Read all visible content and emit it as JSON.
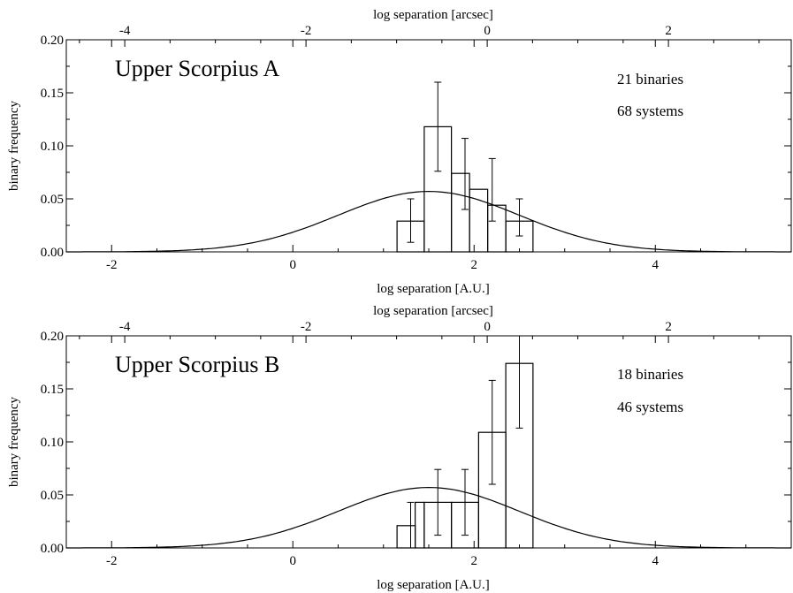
{
  "chart_data": [
    {
      "type": "bar",
      "title": "Upper Scorpius A",
      "annotations": [
        "21 binaries",
        "68 systems"
      ],
      "xlabel": "log separation [A.U.]",
      "x2label": "log separation [arcsec]",
      "ylabel": "binary frequency",
      "xlim": [
        -2.5,
        5.5
      ],
      "x2lim": [
        -4.645,
        3.355
      ],
      "ylim": [
        0,
        0.2
      ],
      "xticks": [
        -2,
        0,
        2,
        4
      ],
      "x2ticks": [
        -4,
        -2,
        0,
        2
      ],
      "yticks": [
        0.0,
        0.05,
        0.1,
        0.15,
        0.2
      ],
      "ytick_labels": [
        "0.00",
        "0.05",
        "0.10",
        "0.15",
        "0.20"
      ],
      "xtick_labels": [
        "-2",
        "0",
        "2",
        "4"
      ],
      "x2tick_labels": [
        "-4",
        "-2",
        "0",
        "2"
      ],
      "bin_edges": [
        1.15,
        1.45,
        1.75,
        1.95,
        2.15,
        2.35,
        2.65
      ],
      "values": [
        0.029,
        0.118,
        0.074,
        0.059,
        0.044,
        0.029
      ],
      "errors": {
        "x": [
          1.3,
          1.6,
          1.9,
          2.2,
          2.5
        ],
        "low": [
          0.009,
          0.076,
          0.04,
          0.029,
          0.015
        ],
        "high": [
          0.05,
          0.16,
          0.107,
          0.088,
          0.05
        ]
      },
      "curve": {
        "type": "gaussian",
        "mean": 1.5,
        "sigma": 1.0,
        "peak": 0.057
      },
      "grid": false
    },
    {
      "type": "bar",
      "title": "Upper Scorpius B",
      "annotations": [
        "18 binaries",
        "46 systems"
      ],
      "xlabel": "log separation [A.U.]",
      "x2label": "log separation [arcsec]",
      "ylabel": "binary frequency",
      "xlim": [
        -2.5,
        5.5
      ],
      "x2lim": [
        -4.645,
        3.355
      ],
      "ylim": [
        0,
        0.2
      ],
      "xticks": [
        -2,
        0,
        2,
        4
      ],
      "x2ticks": [
        -4,
        -2,
        0,
        2
      ],
      "yticks": [
        0.0,
        0.05,
        0.1,
        0.15,
        0.2
      ],
      "ytick_labels": [
        "0.00",
        "0.05",
        "0.10",
        "0.15",
        "0.20"
      ],
      "xtick_labels": [
        "-2",
        "0",
        "2",
        "4"
      ],
      "x2tick_labels": [
        "-4",
        "-2",
        "0",
        "2"
      ],
      "bin_edges": [
        1.15,
        1.35,
        1.45,
        1.75,
        2.05,
        2.35,
        2.65
      ],
      "values": [
        0.021,
        0.043,
        0.043,
        0.043,
        0.109,
        0.174
      ],
      "errors": {
        "x": [
          1.3,
          1.6,
          1.9,
          2.2,
          2.5
        ],
        "low": [
          0.0,
          0.012,
          0.012,
          0.06,
          0.113
        ],
        "high": [
          0.043,
          0.074,
          0.074,
          0.158,
          0.205
        ]
      },
      "curve": {
        "type": "gaussian",
        "mean": 1.5,
        "sigma": 1.0,
        "peak": 0.057
      },
      "grid": false
    }
  ]
}
